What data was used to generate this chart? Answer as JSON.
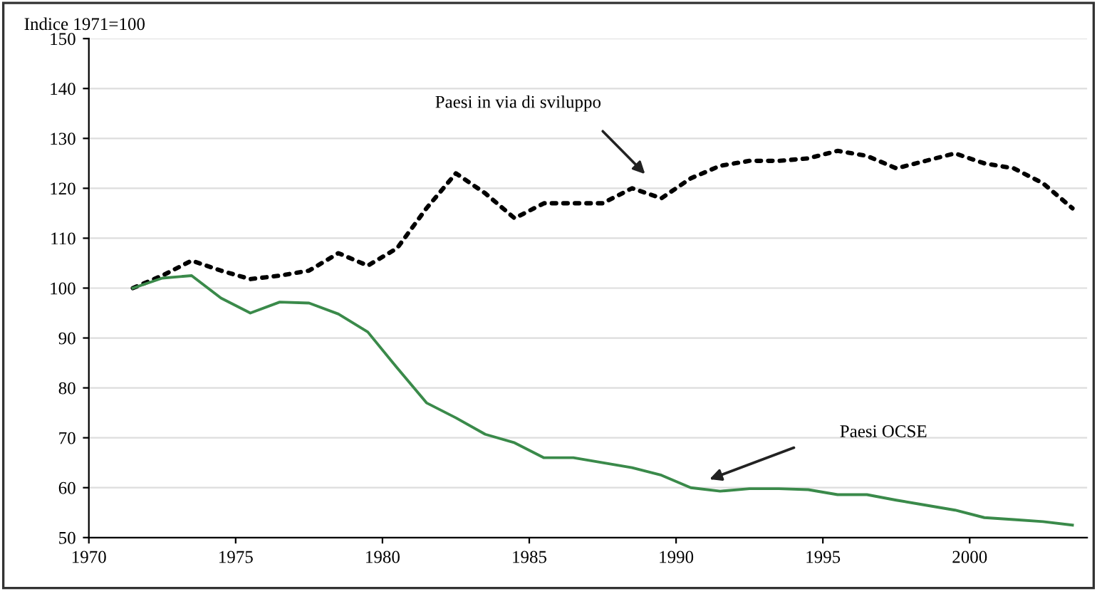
{
  "chart_data": {
    "type": "line",
    "ylabel": "Indice 1971=100",
    "x": [
      1971.5,
      1972.5,
      1973.5,
      1974.5,
      1975.5,
      1976.5,
      1977.5,
      1978.5,
      1979.5,
      1980.5,
      1981.5,
      1982.5,
      1983.5,
      1984.5,
      1985.5,
      1986.5,
      1987.5,
      1988.5,
      1989.5,
      1990.5,
      1991.5,
      1992.5,
      1993.5,
      1994.5,
      1995.5,
      1996.5,
      1997.5,
      1998.5,
      1999.5,
      2000.5,
      2001.5,
      2002.5,
      2003.5
    ],
    "series": [
      {
        "color": "#000000",
        "line_style": "dotted",
        "values": [
          100,
          102.5,
          105.5,
          103.5,
          101.8,
          102.5,
          103.5,
          107,
          104.5,
          108,
          116,
          123,
          119,
          114,
          117,
          117,
          117,
          120,
          118,
          122,
          124.5,
          125.5,
          125.5,
          126,
          127.5,
          126.5,
          124,
          125.5,
          127,
          125,
          124,
          121,
          116
        ]
      },
      {
        "color": "#3a8a4a",
        "line_style": "solid",
        "values": [
          100,
          102,
          102.5,
          98,
          95,
          97.2,
          97,
          94.8,
          91.2,
          84,
          77,
          74,
          70.7,
          69,
          66,
          66,
          65,
          64,
          62.5,
          60,
          59.3,
          59.8,
          59.8,
          59.6,
          58.6,
          58.6,
          57.5,
          56.5,
          55.5,
          54,
          53.6,
          53.2,
          52.5
        ]
      }
    ],
    "annotations": [
      "Paesi in via di sviluppo",
      "Paesi OCSE"
    ],
    "xlim": [
      1970,
      2004
    ],
    "xticks": [
      1970,
      1975,
      1980,
      1985,
      1990,
      1995,
      2000
    ],
    "ylim": [
      50,
      150
    ],
    "yticks": [
      50,
      60,
      70,
      80,
      90,
      100,
      110,
      120,
      130,
      140,
      150
    ],
    "grid": "y",
    "marker": "none"
  }
}
